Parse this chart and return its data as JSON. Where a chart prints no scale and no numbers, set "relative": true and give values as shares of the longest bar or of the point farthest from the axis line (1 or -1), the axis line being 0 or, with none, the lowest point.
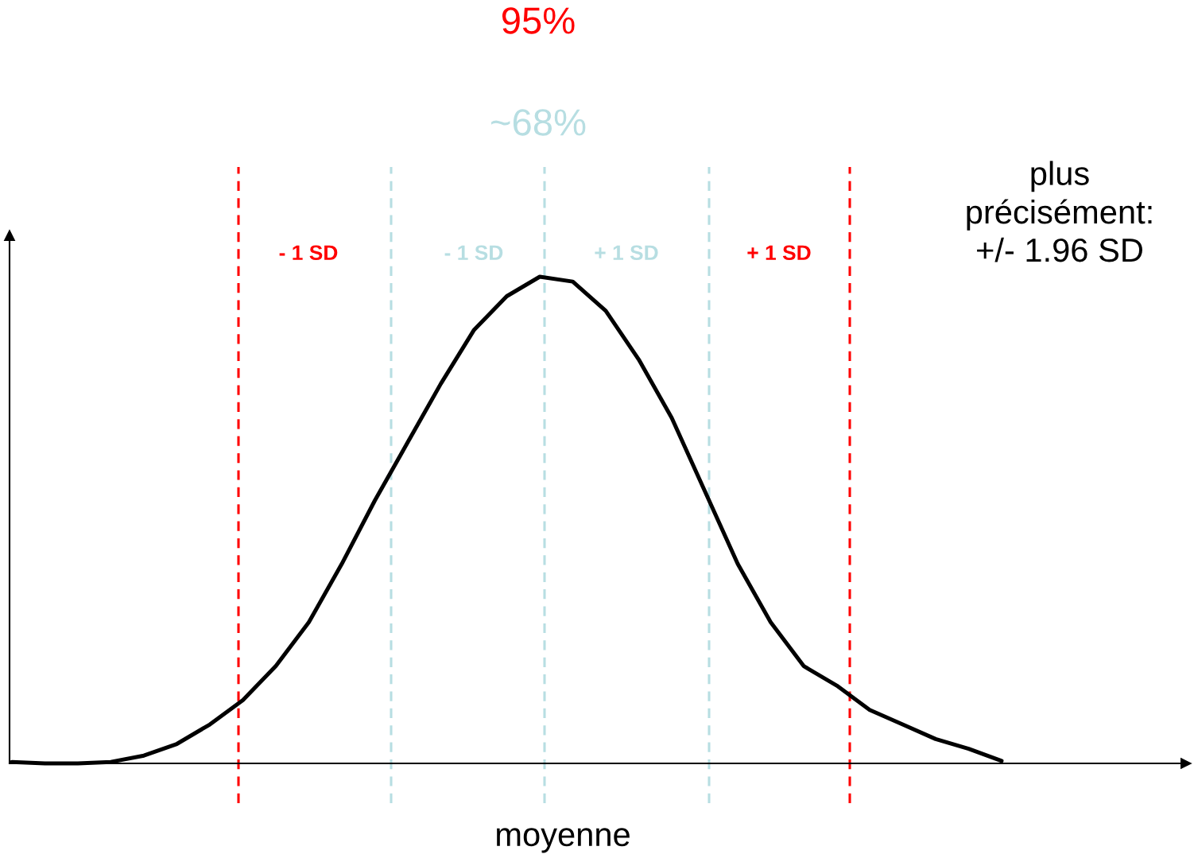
{
  "chart_data": {
    "type": "line",
    "relative": true,
    "xlabel": "moyenne",
    "categories": [
      null,
      null,
      null,
      null,
      null,
      null,
      null,
      null,
      null,
      null,
      null,
      null,
      null,
      null,
      null,
      null,
      null,
      null,
      null,
      null,
      null,
      null,
      null,
      null,
      null,
      null,
      null,
      null,
      null,
      null,
      null
    ],
    "series": [
      {
        "color": "#000000",
        "values": [
          0.003,
          0,
          0,
          0.003,
          0.016,
          0.04,
          0.08,
          0.13,
          0.2,
          0.29,
          0.41,
          0.54,
          0.66,
          0.78,
          0.89,
          0.96,
          1.0,
          0.99,
          0.93,
          0.83,
          0.71,
          0.56,
          0.41,
          0.29,
          0.2,
          0.16,
          0.11,
          0.08,
          0.05,
          0.03,
          0.005
        ]
      }
    ],
    "annotations": [
      "95%",
      "~68%",
      "- 1 SD",
      "- 1 SD",
      "+ 1 SD",
      "+ 1 SD",
      "plus\nprécisément:\n+/- 1.96 SD"
    ],
    "marker": "none",
    "line_style": "solid",
    "legend": false
  }
}
